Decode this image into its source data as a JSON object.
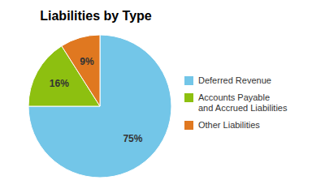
{
  "chart_data": {
    "type": "pie",
    "title": "Liabilities by Type",
    "categories": [
      "Deferred Revenue",
      "Accounts Payable\nand Accrued Liabilities",
      "Other Liabilities"
    ],
    "values": [
      75,
      16,
      9
    ],
    "colors": [
      "#73C6E8",
      "#8DC010",
      "#E07820"
    ],
    "data_labels": true,
    "value_labels": [
      "75%",
      "16%",
      "9%"
    ],
    "legend": "right"
  }
}
